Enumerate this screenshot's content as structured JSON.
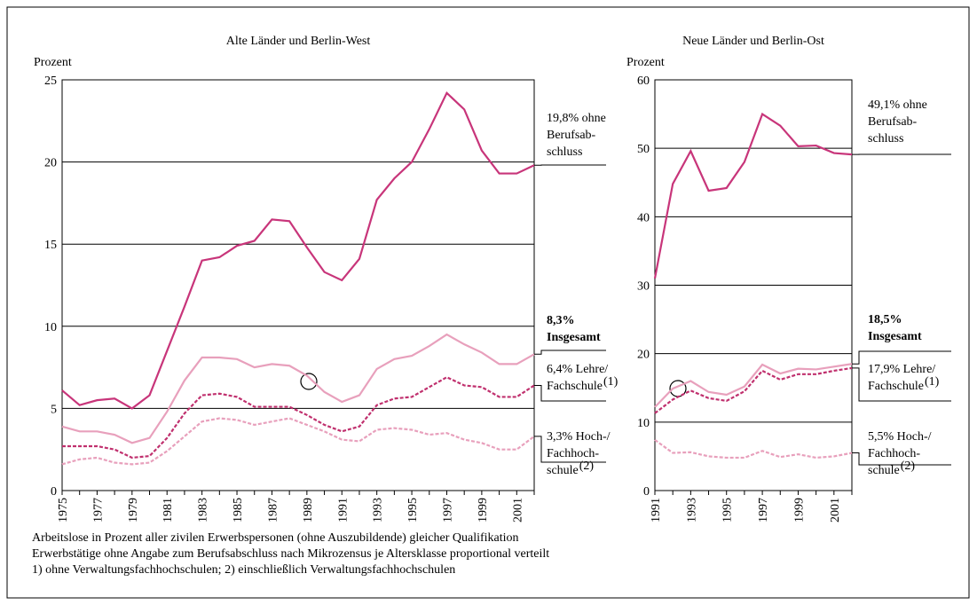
{
  "chart_data": [
    {
      "type": "line",
      "title": "Alte Länder und Berlin-West",
      "ylabel": "Prozent",
      "x": [
        1975,
        1976,
        1977,
        1978,
        1979,
        1980,
        1981,
        1982,
        1983,
        1984,
        1985,
        1986,
        1987,
        1988,
        1989,
        1990,
        1991,
        1992,
        1993,
        1994,
        1995,
        1996,
        1997,
        1998,
        1999,
        2000,
        2001,
        2002
      ],
      "xlim": [
        1975,
        2002
      ],
      "xticks": [
        1975,
        1977,
        1979,
        1981,
        1983,
        1985,
        1987,
        1989,
        1991,
        1993,
        1995,
        1997,
        1999,
        2001
      ],
      "ylim": [
        0,
        25
      ],
      "yticks": [
        0,
        5,
        10,
        15,
        20,
        25
      ],
      "grid": true,
      "series": [
        {
          "color": "#c8357a",
          "dash": false,
          "label": [
            "19,8% ohne",
            "Berufsab-",
            "schluss"
          ],
          "label_bold": false,
          "values": [
            6.1,
            5.2,
            5.5,
            5.6,
            5.0,
            5.8,
            8.5,
            11.2,
            14.0,
            14.2,
            14.9,
            15.2,
            16.5,
            16.4,
            14.8,
            13.3,
            12.8,
            14.1,
            17.7,
            19.0,
            20.0,
            22.0,
            24.2,
            23.2,
            20.7,
            19.3,
            19.3,
            19.8
          ]
        },
        {
          "color": "#e8a0bc",
          "dash": false,
          "label": [
            "8,3%",
            "Insgesamt"
          ],
          "label_bold": true,
          "values": [
            3.9,
            3.6,
            3.6,
            3.4,
            2.9,
            3.2,
            4.8,
            6.7,
            8.1,
            8.1,
            8.0,
            7.5,
            7.7,
            7.6,
            7.0,
            6.0,
            5.4,
            5.8,
            7.4,
            8.0,
            8.2,
            8.8,
            9.5,
            8.9,
            8.4,
            7.7,
            7.7,
            8.3
          ]
        },
        {
          "color": "#c0306e",
          "dash": true,
          "label": [
            "6,4% Lehre/",
            "Fachschule"
          ],
          "label_sup": "(1)",
          "label_bold": false,
          "values": [
            2.7,
            2.7,
            2.7,
            2.5,
            2.0,
            2.1,
            3.2,
            4.7,
            5.8,
            5.9,
            5.7,
            5.1,
            5.1,
            5.1,
            4.6,
            4.0,
            3.6,
            3.9,
            5.2,
            5.6,
            5.7,
            6.3,
            6.9,
            6.4,
            6.3,
            5.7,
            5.7,
            6.4
          ]
        },
        {
          "color": "#e8a0bc",
          "dash": true,
          "label": [
            "3,3% Hoch-/",
            "Fachhoch-",
            "schule"
          ],
          "label_sup": "(2)",
          "label_bold": false,
          "values": [
            1.6,
            1.9,
            2.0,
            1.7,
            1.6,
            1.7,
            2.4,
            3.3,
            4.2,
            4.4,
            4.3,
            4.0,
            4.2,
            4.4,
            4.0,
            3.6,
            3.1,
            3.0,
            3.7,
            3.8,
            3.7,
            3.4,
            3.5,
            3.1,
            2.9,
            2.5,
            2.5,
            3.3
          ]
        }
      ]
    },
    {
      "type": "line",
      "title": "Neue Länder und Berlin-Ost",
      "ylabel": "Prozent",
      "x": [
        1991,
        1992,
        1993,
        1994,
        1995,
        1996,
        1997,
        1998,
        1999,
        2000,
        2001,
        2002
      ],
      "xlim": [
        1991,
        2002
      ],
      "xticks": [
        1991,
        1993,
        1995,
        1997,
        1999,
        2001
      ],
      "ylim": [
        0,
        60
      ],
      "yticks": [
        0,
        10,
        20,
        30,
        40,
        50,
        60
      ],
      "grid": true,
      "series": [
        {
          "color": "#c8357a",
          "dash": false,
          "label": [
            "49,1% ohne",
            "Berufsab-",
            "schluss"
          ],
          "label_bold": false,
          "values": [
            31.0,
            44.8,
            49.6,
            43.8,
            44.2,
            48.0,
            55.0,
            53.3,
            50.3,
            50.4,
            49.3,
            49.1
          ]
        },
        {
          "color": "#e8a0bc",
          "dash": false,
          "label": [
            "18,5%",
            "Insgesamt"
          ],
          "label_bold": true,
          "values": [
            12.2,
            14.9,
            16.0,
            14.4,
            14.0,
            15.2,
            18.4,
            17.1,
            17.8,
            17.7,
            18.1,
            18.5
          ]
        },
        {
          "color": "#c0306e",
          "dash": true,
          "label": [
            "17,9% Lehre/",
            "Fachschule"
          ],
          "label_sup": "(1)",
          "label_bold": false,
          "values": [
            11.3,
            13.3,
            14.6,
            13.5,
            13.1,
            14.5,
            17.5,
            16.2,
            17.0,
            17.0,
            17.5,
            17.9
          ]
        },
        {
          "color": "#e8a0bc",
          "dash": true,
          "label": [
            "5,5% Hoch-/",
            "Fachhoch-",
            "schule"
          ],
          "label_sup": "(2)",
          "label_bold": false,
          "values": [
            7.4,
            5.5,
            5.6,
            5.0,
            4.8,
            4.8,
            5.8,
            4.9,
            5.3,
            4.8,
            5.0,
            5.5
          ]
        }
      ]
    }
  ],
  "footnotes": [
    "Arbeitslose in Prozent aller zivilen Erwerbspersonen (ohne Auszubildende) gleicher Qualifikation",
    "Erwerbstätige ohne Angabe zum Berufsabschluss nach Mikrozensus je Altersklasse proportional verteilt",
    "1) ohne Verwaltungsfachhochschulen; 2) einschließlich Verwaltungsfachhochschulen"
  ]
}
